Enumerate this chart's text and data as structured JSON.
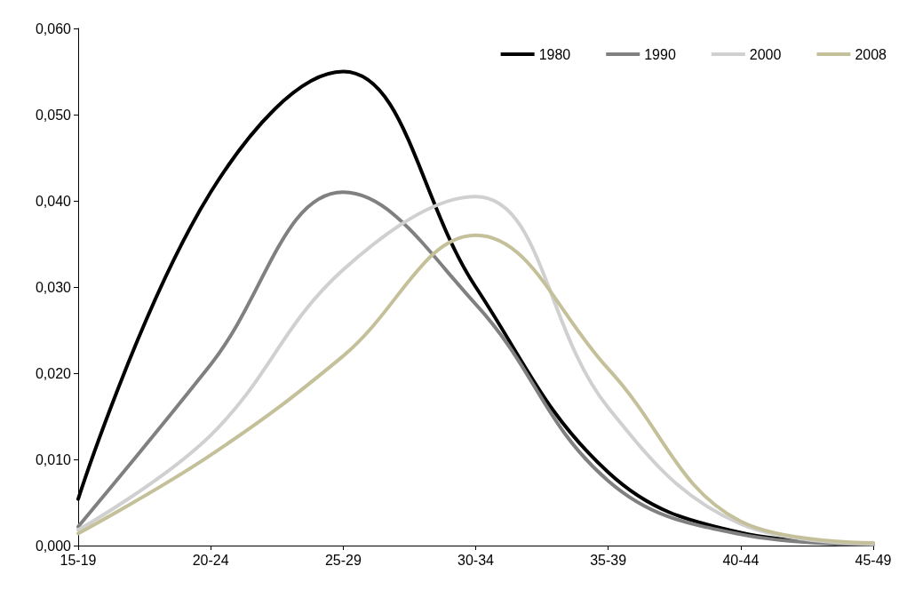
{
  "chart_data": {
    "type": "line",
    "categories": [
      "15-19",
      "20-24",
      "25-29",
      "30-34",
      "35-39",
      "40-44",
      "45-49"
    ],
    "series": [
      {
        "name": "1980",
        "color": "#000000",
        "values": [
          0.0054,
          0.041,
          0.055,
          0.03,
          0.0085,
          0.0015,
          0.0002
        ]
      },
      {
        "name": "1990",
        "color": "#808080",
        "values": [
          0.0022,
          0.021,
          0.041,
          0.028,
          0.0075,
          0.0013,
          0.0001
        ]
      },
      {
        "name": "2000",
        "color": "#d0d0d0",
        "values": [
          0.0018,
          0.0128,
          0.032,
          0.0405,
          0.016,
          0.0025,
          0.0002
        ]
      },
      {
        "name": "2008",
        "color": "#c4c09a",
        "values": [
          0.0014,
          0.0105,
          0.022,
          0.036,
          0.0205,
          0.0028,
          0.0003
        ]
      }
    ],
    "ylim": [
      0,
      0.06
    ],
    "yticks": [
      {
        "value": 0,
        "label": "0,000"
      },
      {
        "value": 0.01,
        "label": "0,010"
      },
      {
        "value": 0.02,
        "label": "0,020"
      },
      {
        "value": 0.03,
        "label": "0,030"
      },
      {
        "value": 0.04,
        "label": "0,040"
      },
      {
        "value": 0.05,
        "label": "0,050"
      },
      {
        "value": 0.06,
        "label": "0,060"
      }
    ],
    "grid": false,
    "legend": "top right",
    "marker": "none",
    "line_style": "solid"
  }
}
